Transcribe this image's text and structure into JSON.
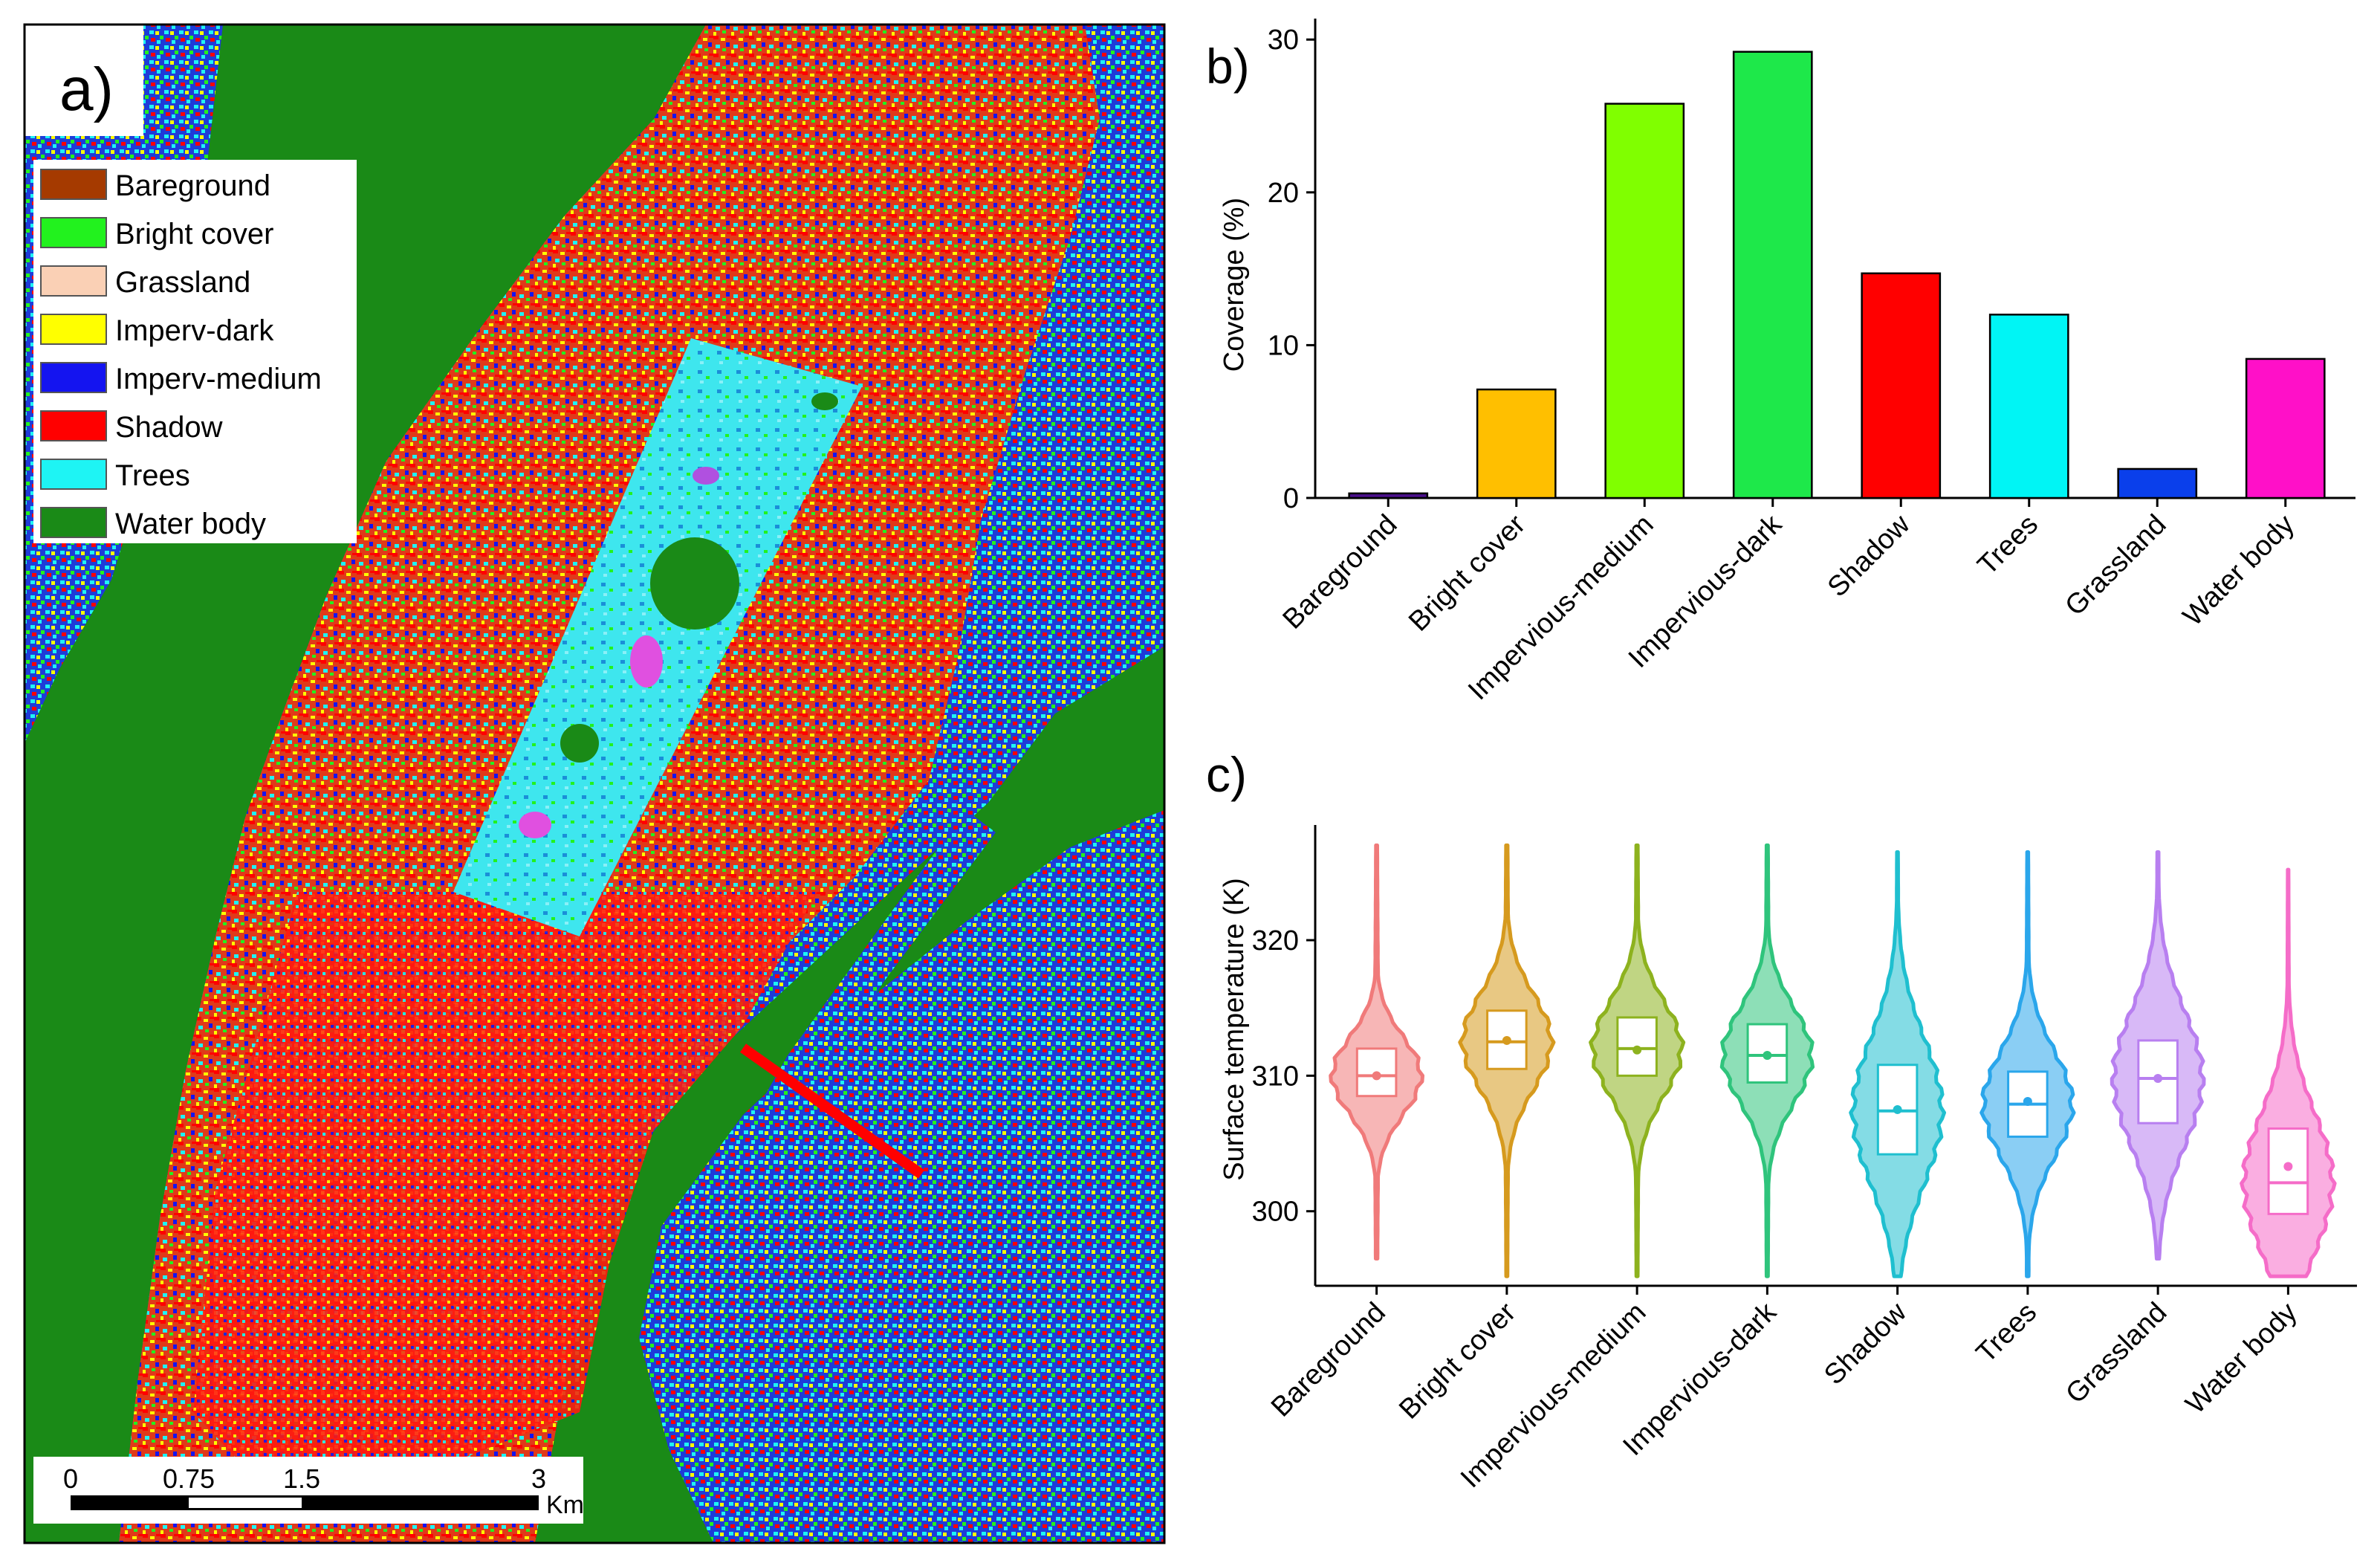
{
  "panel_a": {
    "label": "a)",
    "legend": [
      {
        "name": "Bareground",
        "color": "#A53A00"
      },
      {
        "name": "Bright cover",
        "color": "#22F21E"
      },
      {
        "name": "Grassland",
        "color": "#FAD0B5"
      },
      {
        "name": "Imperv-dark",
        "color": "#FFFF00"
      },
      {
        "name": "Imperv-medium",
        "color": "#1414F0"
      },
      {
        "name": "Shadow",
        "color": "#FF0000"
      },
      {
        "name": "Trees",
        "color": "#1EF4F4"
      },
      {
        "name": "Water body",
        "color": "#1A8A17"
      }
    ],
    "scale_bar": {
      "ticks": [
        "0",
        "0.75",
        "1.5",
        "3"
      ],
      "unit": "Km"
    }
  },
  "chart_data": [
    {
      "panel": "b)",
      "type": "bar",
      "categories": [
        "Bareground",
        "Bright cover",
        "Impervious-medium",
        "Impervious-dark",
        "Shadow",
        "Trees",
        "Grassland",
        "Water body"
      ],
      "values": [
        0.3,
        7.1,
        25.8,
        29.2,
        14.7,
        12.0,
        1.9,
        9.1
      ],
      "colors": [
        "#4B0F8C",
        "#FFBF00",
        "#80FF00",
        "#1EE84A",
        "#FF0000",
        "#00F5F5",
        "#0A3FEB",
        "#FF10C8"
      ],
      "ylabel": "Coverage (%)",
      "ylim": [
        0,
        30
      ],
      "yticks": [
        "0",
        "10",
        "20",
        "30"
      ]
    },
    {
      "panel": "c)",
      "type": "violin",
      "categories": [
        "Bareground",
        "Bright cover",
        "Impervious-medium",
        "Impervious-dark",
        "Shadow",
        "Trees",
        "Grassland",
        "Water body"
      ],
      "colors": [
        "#F07A7A",
        "#D69A1E",
        "#8DB21E",
        "#2FC47C",
        "#1FBFCF",
        "#2AA6EB",
        "#B87FF0",
        "#F56CC8"
      ],
      "stats": [
        {
          "min": 296.5,
          "q1": 308.5,
          "median": 310.0,
          "q3": 312.0,
          "mean": 310.0,
          "max": 327.0
        },
        {
          "min": 295.2,
          "q1": 310.5,
          "median": 312.5,
          "q3": 314.8,
          "mean": 312.6,
          "max": 327.0
        },
        {
          "min": 295.2,
          "q1": 310.0,
          "median": 312.0,
          "q3": 314.3,
          "mean": 311.9,
          "max": 327.0
        },
        {
          "min": 295.2,
          "q1": 309.5,
          "median": 311.5,
          "q3": 313.8,
          "mean": 311.5,
          "max": 327.0
        },
        {
          "min": 295.2,
          "q1": 304.2,
          "median": 307.4,
          "q3": 310.8,
          "mean": 307.5,
          "max": 326.5
        },
        {
          "min": 295.2,
          "q1": 305.5,
          "median": 307.9,
          "q3": 310.3,
          "mean": 308.1,
          "max": 326.5
        },
        {
          "min": 296.5,
          "q1": 306.5,
          "median": 309.8,
          "q3": 312.6,
          "mean": 309.8,
          "max": 326.5
        },
        {
          "min": 295.2,
          "q1": 299.8,
          "median": 302.1,
          "q3": 306.1,
          "mean": 303.3,
          "max": 325.2
        }
      ],
      "ylabel": "Surface temperature (K)",
      "ylim": [
        294.5,
        328.5
      ],
      "yticks": [
        "300",
        "310",
        "320"
      ]
    }
  ]
}
